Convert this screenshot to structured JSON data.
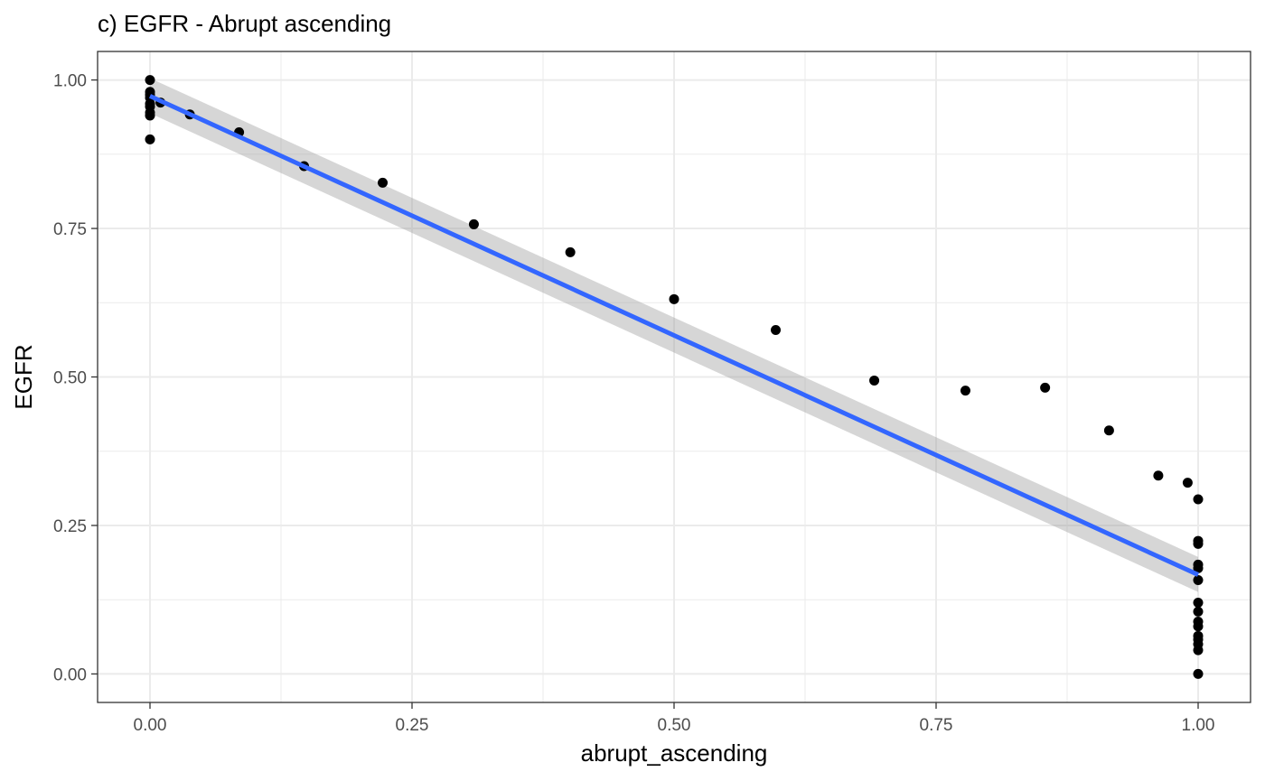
{
  "chart_data": {
    "type": "scatter",
    "title": "c) EGFR - Abrupt ascending",
    "xlabel": "abrupt_ascending",
    "ylabel": "EGFR",
    "xlim": [
      -0.05,
      1.05
    ],
    "ylim": [
      -0.048,
      1.048
    ],
    "x_ticks": [
      0,
      0.25,
      0.5,
      0.75,
      1
    ],
    "x_tick_labels": [
      "0.00",
      "0.25",
      "0.50",
      "0.75",
      "1.00"
    ],
    "y_ticks": [
      0,
      0.25,
      0.5,
      0.75,
      1
    ],
    "y_tick_labels": [
      "0.00",
      "0.25",
      "0.50",
      "0.75",
      "1.00"
    ],
    "grid": true,
    "legend": "none",
    "point_color": "#000000",
    "fit_color": "#3366ff",
    "band_color": "#999999",
    "points": [
      {
        "x": 0.0,
        "y": 1.0
      },
      {
        "x": 0.0,
        "y": 0.98
      },
      {
        "x": 0.0,
        "y": 0.975
      },
      {
        "x": 0.0,
        "y": 0.97
      },
      {
        "x": 0.0,
        "y": 0.96
      },
      {
        "x": 0.0,
        "y": 0.955
      },
      {
        "x": 0.0,
        "y": 0.945
      },
      {
        "x": 0.0,
        "y": 0.94
      },
      {
        "x": 0.0,
        "y": 0.9
      },
      {
        "x": 0.01,
        "y": 0.962
      },
      {
        "x": 0.038,
        "y": 0.942
      },
      {
        "x": 0.085,
        "y": 0.912
      },
      {
        "x": 0.147,
        "y": 0.855
      },
      {
        "x": 0.222,
        "y": 0.827
      },
      {
        "x": 0.309,
        "y": 0.757
      },
      {
        "x": 0.401,
        "y": 0.71
      },
      {
        "x": 0.5,
        "y": 0.631
      },
      {
        "x": 0.597,
        "y": 0.579
      },
      {
        "x": 0.691,
        "y": 0.494
      },
      {
        "x": 0.778,
        "y": 0.477
      },
      {
        "x": 0.854,
        "y": 0.482
      },
      {
        "x": 0.915,
        "y": 0.41
      },
      {
        "x": 0.962,
        "y": 0.334
      },
      {
        "x": 0.99,
        "y": 0.322
      },
      {
        "x": 1.0,
        "y": 0.294
      },
      {
        "x": 1.0,
        "y": 0.224
      },
      {
        "x": 1.0,
        "y": 0.219
      },
      {
        "x": 1.0,
        "y": 0.184
      },
      {
        "x": 1.0,
        "y": 0.178
      },
      {
        "x": 1.0,
        "y": 0.158
      },
      {
        "x": 1.0,
        "y": 0.12
      },
      {
        "x": 1.0,
        "y": 0.105
      },
      {
        "x": 1.0,
        "y": 0.088
      },
      {
        "x": 1.0,
        "y": 0.08
      },
      {
        "x": 1.0,
        "y": 0.064
      },
      {
        "x": 1.0,
        "y": 0.058
      },
      {
        "x": 1.0,
        "y": 0.05
      },
      {
        "x": 1.0,
        "y": 0.04
      },
      {
        "x": 1.0,
        "y": 0.0
      }
    ],
    "fit": {
      "x": [
        0.0,
        1.0
      ],
      "y": [
        0.973,
        0.167
      ],
      "band_lower": [
        0.944,
        0.138
      ],
      "band_upper": [
        1.003,
        0.197
      ]
    }
  }
}
